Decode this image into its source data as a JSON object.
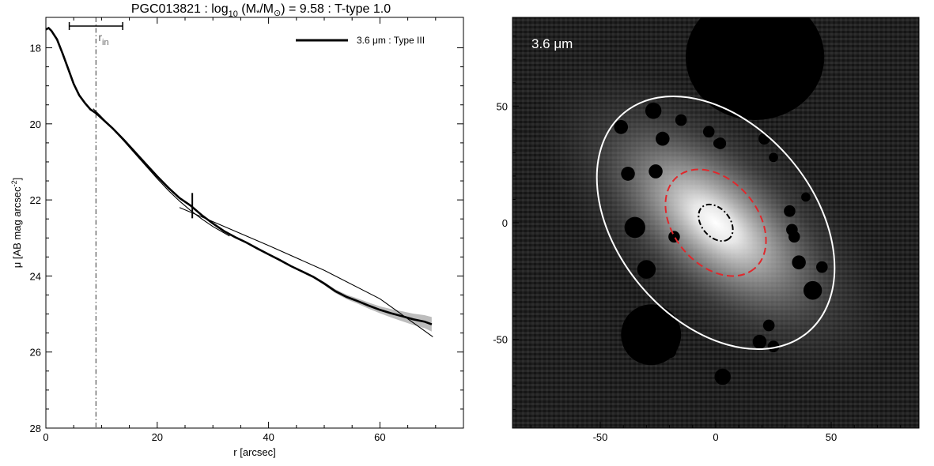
{
  "chart_data": [
    {
      "type": "line",
      "title_parts": {
        "name": "PGC013821 : log",
        "sub": "10",
        "open": " (M",
        "star": "*",
        "slash": "/M",
        "sun": "⊙",
        "value": ") = 9.58 : T-type 1.0"
      },
      "xlabel": "r [arcsec]",
      "ylabel_main": "μ [AB mag arcsec",
      "ylabel_sup": "-2",
      "ylabel_close": "]",
      "xlim": [
        0,
        75
      ],
      "ylim": [
        28,
        17.2
      ],
      "y_inverted": true,
      "x_ticks": [
        0,
        20,
        40,
        60
      ],
      "y_ticks": [
        18,
        20,
        22,
        24,
        26,
        28
      ],
      "legend": {
        "label": "3.6 μm : Type III",
        "position": "top-right"
      },
      "r_in": {
        "label": "r",
        "sub": "in",
        "x": 9.0,
        "range": [
          4.2,
          13.8
        ]
      },
      "break_marker": {
        "x": 26.3,
        "y": 22.15
      },
      "series": [
        {
          "name": "3.6 μm : Type III",
          "style": "thick",
          "x": [
            0,
            0.5,
            1,
            2,
            3,
            4,
            5,
            6,
            7,
            8,
            9,
            10,
            12,
            14,
            16,
            18,
            20,
            22,
            24,
            26,
            28,
            30,
            32,
            34,
            36,
            38,
            40,
            42,
            44,
            46,
            48,
            50,
            52,
            54,
            56,
            58,
            60,
            62,
            64,
            66,
            68,
            69.3
          ],
          "y": [
            17.52,
            17.48,
            17.55,
            17.78,
            18.15,
            18.55,
            18.95,
            19.25,
            19.45,
            19.62,
            19.72,
            19.85,
            20.12,
            20.42,
            20.74,
            21.06,
            21.38,
            21.68,
            21.95,
            22.15,
            22.4,
            22.62,
            22.82,
            22.98,
            23.12,
            23.28,
            23.43,
            23.58,
            23.74,
            23.88,
            24.02,
            24.2,
            24.4,
            24.55,
            24.66,
            24.78,
            24.89,
            24.98,
            25.06,
            25.14,
            25.2,
            25.27
          ]
        },
        {
          "name": "",
          "style": "thin",
          "x": [
            8.5,
            10,
            12,
            14,
            16,
            18,
            20,
            22,
            24,
            26,
            28,
            30,
            33
          ],
          "y": [
            19.6,
            19.82,
            20.13,
            20.45,
            20.78,
            21.11,
            21.44,
            21.75,
            22.03,
            22.28,
            22.5,
            22.7,
            22.95
          ]
        },
        {
          "name": "",
          "style": "thin",
          "x": [
            24,
            30,
            40,
            50,
            60,
            69.5
          ],
          "y": [
            22.2,
            22.57,
            23.2,
            23.85,
            24.6,
            25.6
          ]
        }
      ],
      "uncertainty_band": {
        "x": [
          48,
          50,
          52,
          54,
          56,
          58,
          60,
          62,
          64,
          66,
          68,
          69.3
        ],
        "lower": [
          23.99,
          24.16,
          24.35,
          24.49,
          24.59,
          24.7,
          24.8,
          24.87,
          24.93,
          24.99,
          25.03,
          25.08
        ],
        "upper": [
          24.05,
          24.24,
          24.45,
          24.61,
          24.73,
          24.86,
          24.98,
          25.09,
          25.19,
          25.29,
          25.37,
          25.46
        ]
      }
    },
    {
      "type": "image",
      "label": "3.6 μm",
      "xlim": [
        -88,
        88
      ],
      "ylim": [
        -88,
        88
      ],
      "x_ticks": [
        -50,
        0,
        50
      ],
      "y_ticks": [
        -50,
        0,
        50
      ],
      "colors": {
        "outer_ellipse": "#ffffff",
        "break_ellipse": "#e0282c",
        "inner_ellipse": "#000000",
        "background": "#1a1a1a"
      },
      "ellipses": [
        {
          "name": "outer",
          "cx": 0,
          "cy": 0,
          "a": 62,
          "b": 42,
          "angle_deg": -50,
          "style": "solid"
        },
        {
          "name": "break",
          "cx": 0,
          "cy": 0,
          "a": 26,
          "b": 18,
          "angle_deg": -50,
          "style": "dashed"
        },
        {
          "name": "inner",
          "cx": 0,
          "cy": 0,
          "a": 9,
          "b": 6,
          "angle_deg": -50,
          "style": "dashdot"
        }
      ],
      "masks": [
        {
          "x": 17,
          "y": 71,
          "r": 27,
          "rx": 30
        },
        {
          "x": -28,
          "y": -48,
          "r": 13
        },
        {
          "x": -27,
          "y": 48,
          "r": 3.5
        },
        {
          "x": -41,
          "y": 41,
          "r": 3
        },
        {
          "x": -15,
          "y": 44,
          "r": 2.5
        },
        {
          "x": -3,
          "y": 39,
          "r": 2.5
        },
        {
          "x": -23,
          "y": 36,
          "r": 3
        },
        {
          "x": 2,
          "y": 34,
          "r": 2.5
        },
        {
          "x": 2,
          "y": 34,
          "r": 2
        },
        {
          "x": 21,
          "y": 36,
          "r": 2.5
        },
        {
          "x": 25,
          "y": 28,
          "r": 2
        },
        {
          "x": 1,
          "y": 34,
          "r": 2
        },
        {
          "x": 1,
          "y": 34,
          "r": 2
        },
        {
          "x": -38,
          "y": 21,
          "r": 3
        },
        {
          "x": -26,
          "y": 22,
          "r": 3
        },
        {
          "x": 32,
          "y": 5,
          "r": 2.5
        },
        {
          "x": -35,
          "y": -2,
          "r": 4.5
        },
        {
          "x": -18,
          "y": -6,
          "r": 2.5
        },
        {
          "x": 34,
          "y": -6,
          "r": 2.5
        },
        {
          "x": 36,
          "y": -17,
          "r": 3
        },
        {
          "x": -30,
          "y": -20,
          "r": 4
        },
        {
          "x": 42,
          "y": -29,
          "r": 4
        },
        {
          "x": 46,
          "y": -19,
          "r": 2.5
        },
        {
          "x": -20,
          "y": -55,
          "r": 3
        },
        {
          "x": 19,
          "y": -51,
          "r": 3
        },
        {
          "x": 23,
          "y": -44,
          "r": 2.5
        },
        {
          "x": 25,
          "y": -53,
          "r": 2.5
        },
        {
          "x": 3,
          "y": -66,
          "r": 3.5
        },
        {
          "x": 33,
          "y": -3,
          "r": 2.5
        },
        {
          "x": 39,
          "y": 11,
          "r": 2
        }
      ]
    }
  ]
}
